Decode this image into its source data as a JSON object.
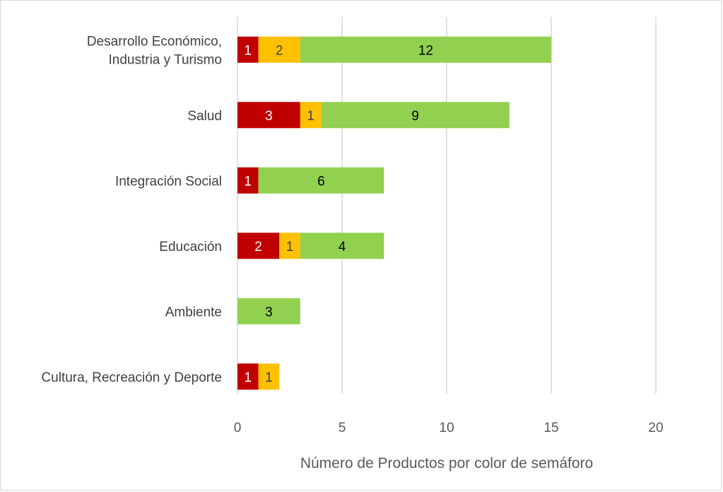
{
  "chart_data": {
    "type": "bar",
    "orientation": "horizontal",
    "stacked": true,
    "categories": [
      [
        "Desarrollo Económico,",
        "Industria y Turismo"
      ],
      [
        "Salud"
      ],
      [
        "Integración Social"
      ],
      [
        "Educación"
      ],
      [
        "Ambiente"
      ],
      [
        "Cultura, Recreación y Deporte"
      ]
    ],
    "series": [
      {
        "color": "#c00000",
        "label_color": "#ffffff",
        "values": [
          1,
          3,
          1,
          2,
          null,
          1
        ]
      },
      {
        "color": "#ffc000",
        "label_color": "#404040",
        "values": [
          2,
          1,
          null,
          1,
          null,
          1
        ]
      },
      {
        "color": "#92d050",
        "label_color": "#000000",
        "values": [
          12,
          9,
          6,
          4,
          3,
          null
        ]
      }
    ],
    "xlim": [
      0,
      20
    ],
    "xticks": [
      0,
      5,
      10,
      15,
      20
    ],
    "xlabel": "Número de Productos por color de semáforo",
    "ylabel": "",
    "title": "",
    "grid": "vertical",
    "legend": "none"
  }
}
